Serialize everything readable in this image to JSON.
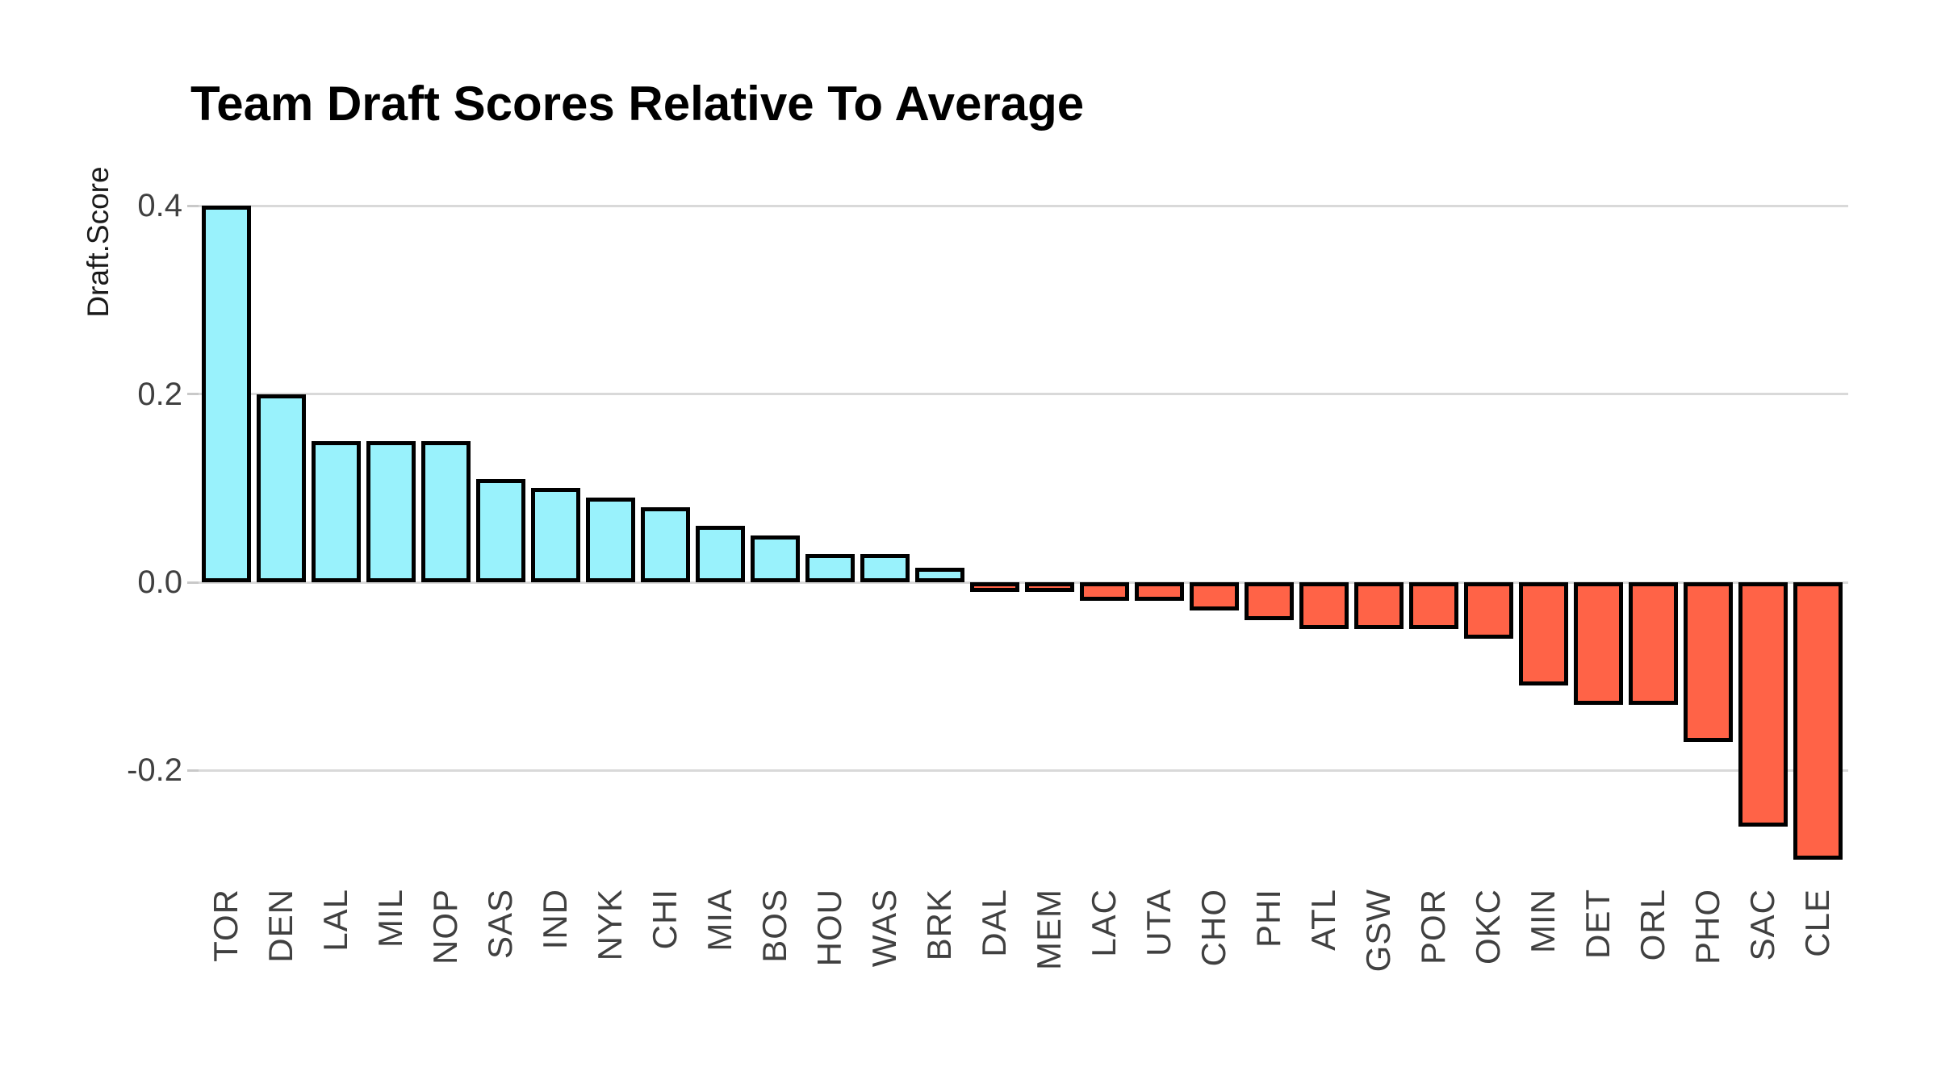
{
  "chart_data": {
    "type": "bar",
    "title": "Team Draft Scores Relative To Average",
    "xlabel": "",
    "ylabel": "Draft.Score",
    "categories": [
      "TOR",
      "DEN",
      "LAL",
      "MIL",
      "NOP",
      "SAS",
      "IND",
      "NYK",
      "CHI",
      "MIA",
      "BOS",
      "HOU",
      "WAS",
      "BRK",
      "DAL",
      "MEM",
      "LAC",
      "UTA",
      "CHO",
      "PHI",
      "ATL",
      "GSW",
      "POR",
      "OKC",
      "MIN",
      "DET",
      "ORL",
      "PHO",
      "SAC",
      "CLE"
    ],
    "values": [
      0.4,
      0.2,
      0.15,
      0.15,
      0.15,
      0.11,
      0.1,
      0.09,
      0.08,
      0.06,
      0.05,
      0.03,
      0.03,
      0.015,
      -0.01,
      -0.01,
      -0.02,
      -0.02,
      -0.03,
      -0.04,
      -0.05,
      -0.05,
      -0.05,
      -0.06,
      -0.11,
      -0.13,
      -0.13,
      -0.17,
      -0.26,
      -0.295
    ],
    "yticks": [
      0.4,
      0.2,
      0.0,
      -0.2
    ],
    "ylim": [
      -0.32,
      0.46
    ],
    "grid": "horizontal-major-only",
    "legend": "none",
    "colors": {
      "positive_fill": "#99F2FC",
      "negative_fill": "#FF6347",
      "bar_stroke": "#000000",
      "gridline": "#D9D9D9",
      "tick_mark": "#C9C9C9",
      "axis_text": "#404040",
      "title_text": "#000000",
      "background": "#FFFFFF"
    }
  }
}
